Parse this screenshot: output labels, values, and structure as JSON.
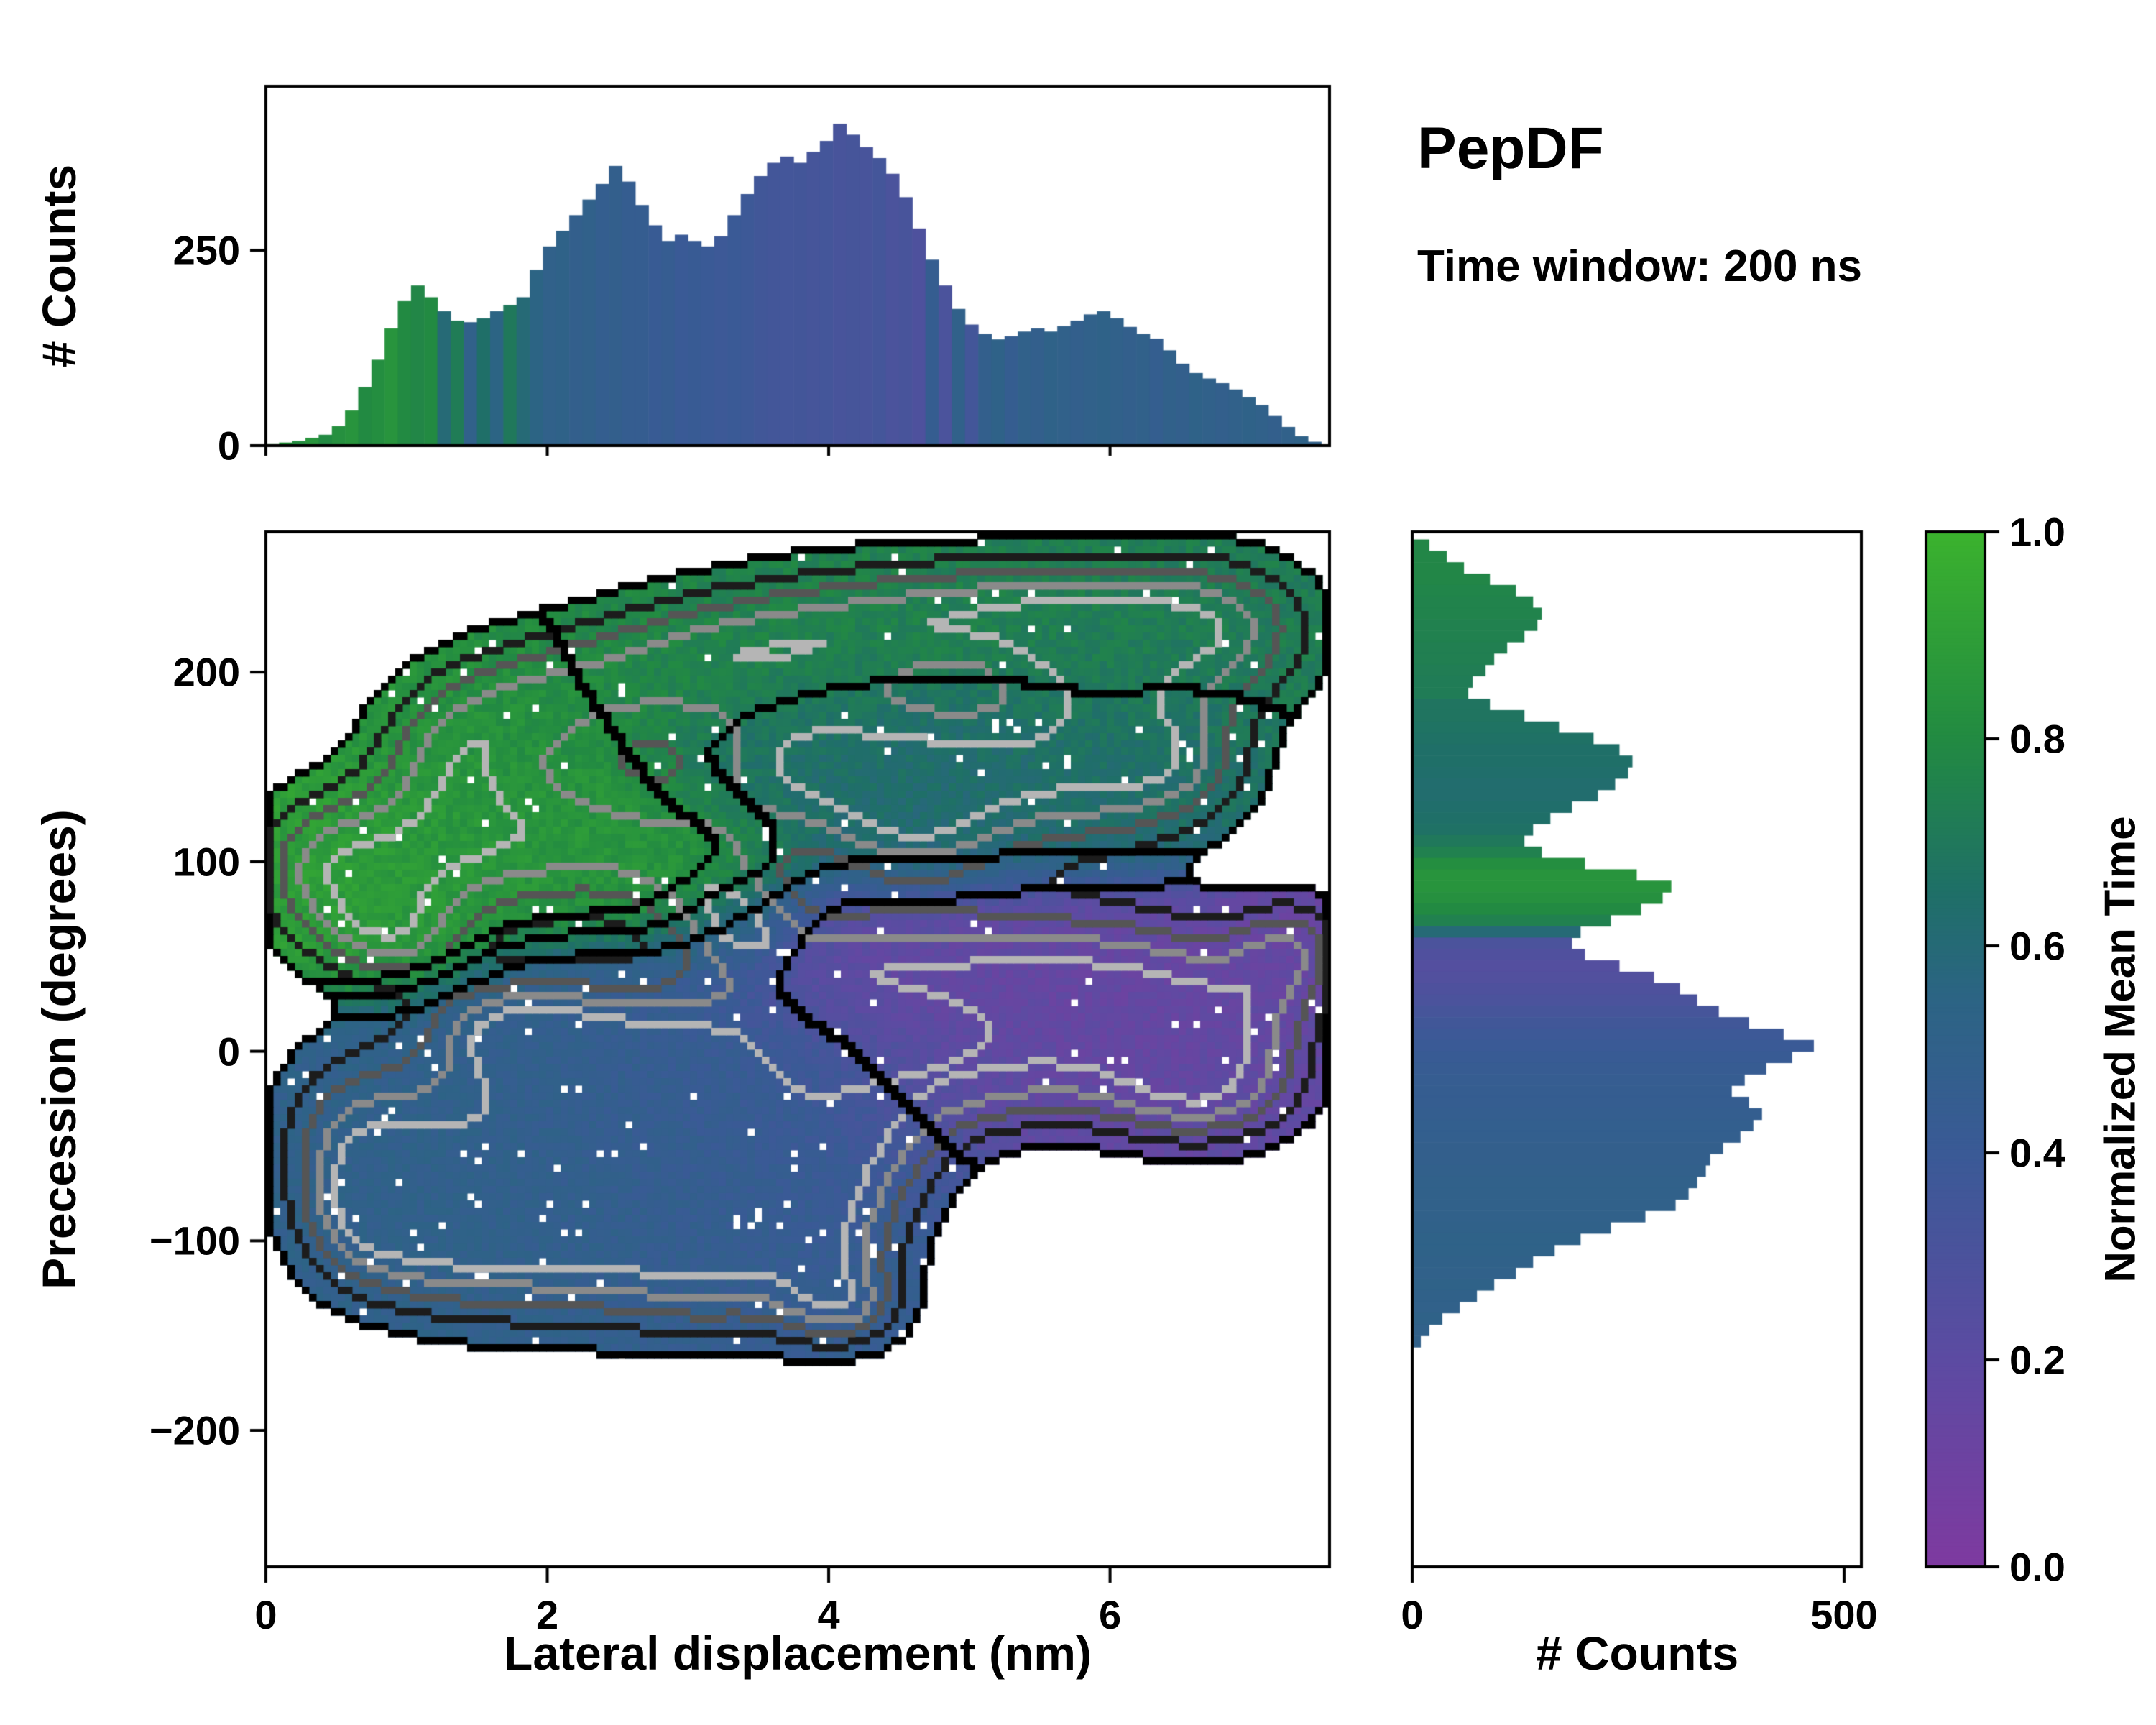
{
  "chart_data": {
    "type": "heatmap",
    "title": "PepDF",
    "subtitle": "Time window: 200 ns",
    "colormap": {
      "label": "Normalized Mean Time",
      "ticks": [
        "0.0",
        "0.2",
        "0.4",
        "0.6",
        "0.8",
        "1.0"
      ],
      "tick_values": [
        0,
        0.2,
        0.4,
        0.6,
        0.8,
        1
      ],
      "stops": [
        [
          0,
          "#7e3aa0"
        ],
        [
          0.2,
          "#5c4ba2"
        ],
        [
          0.4,
          "#3a5a96"
        ],
        [
          0.55,
          "#2c6484"
        ],
        [
          0.65,
          "#1f6f68"
        ],
        [
          0.8,
          "#228a42"
        ],
        [
          1,
          "#3bb22e"
        ]
      ]
    },
    "main_plot": {
      "xlabel": "Lateral displacement (nm)",
      "ylabel": "Precession (degrees)",
      "xlim": [
        0,
        7.56
      ],
      "ylim": [
        -272,
        274
      ],
      "xticks": {
        "labels": [
          "0",
          "2",
          "4",
          "6"
        ],
        "values": [
          0,
          2,
          4,
          6
        ]
      },
      "yticks": {
        "labels": [
          "−200",
          "−100",
          "0",
          "100",
          "200"
        ],
        "values": [
          -200,
          -100,
          0,
          100,
          200
        ]
      },
      "fill_threshold": 0.3,
      "contour_levels": [
        0.3,
        0.62,
        0.95,
        1.3,
        1.65
      ],
      "contour_colors": [
        "#000000",
        "#1c1c1c",
        "#555555",
        "#8a8a8a",
        "#b5b5b5"
      ],
      "value_contours": [
        0.3,
        0.56,
        0.7,
        0.8
      ],
      "blobs": [
        [
          0.35,
          95,
          0.35,
          28,
          0.9
        ],
        [
          0.9,
          100,
          0.45,
          30,
          0.88
        ],
        [
          1.6,
          110,
          0.5,
          30,
          0.86
        ],
        [
          2.4,
          115,
          0.5,
          30,
          0.85
        ],
        [
          3.1,
          95,
          0.4,
          22,
          0.86
        ],
        [
          1.3,
          160,
          0.4,
          28,
          0.84
        ],
        [
          1.9,
          185,
          0.45,
          25,
          0.82
        ],
        [
          0.9,
          60,
          0.35,
          18,
          0.88
        ],
        [
          2.7,
          200,
          0.5,
          25,
          0.78
        ],
        [
          3.5,
          215,
          0.55,
          25,
          0.76
        ],
        [
          4.4,
          225,
          0.6,
          25,
          0.75
        ],
        [
          5.3,
          232,
          0.6,
          22,
          0.74
        ],
        [
          6.2,
          232,
          0.55,
          24,
          0.73
        ],
        [
          6.9,
          220,
          0.45,
          28,
          0.72
        ],
        [
          5.9,
          195,
          0.5,
          25,
          0.72
        ],
        [
          3.6,
          150,
          0.5,
          28,
          0.66
        ],
        [
          4.3,
          155,
          0.55,
          28,
          0.64
        ],
        [
          5.1,
          150,
          0.55,
          28,
          0.63
        ],
        [
          5.9,
          140,
          0.5,
          28,
          0.64
        ],
        [
          4.6,
          115,
          0.5,
          22,
          0.62
        ],
        [
          6.5,
          155,
          0.4,
          25,
          0.66
        ],
        [
          4.0,
          45,
          0.5,
          25,
          0.2
        ],
        [
          4.8,
          40,
          0.55,
          28,
          0.16
        ],
        [
          5.6,
          45,
          0.55,
          25,
          0.15
        ],
        [
          6.4,
          35,
          0.5,
          28,
          0.15
        ],
        [
          7.0,
          10,
          0.4,
          30,
          0.17
        ],
        [
          5.9,
          -5,
          0.55,
          25,
          0.15
        ],
        [
          6.6,
          -25,
          0.45,
          20,
          0.18
        ],
        [
          5.0,
          -15,
          0.5,
          22,
          0.2
        ],
        [
          7.3,
          55,
          0.3,
          20,
          0.15
        ],
        [
          0.6,
          -45,
          0.4,
          35,
          0.5
        ],
        [
          1.3,
          -55,
          0.5,
          40,
          0.5
        ],
        [
          2.1,
          -45,
          0.55,
          40,
          0.48
        ],
        [
          2.9,
          -55,
          0.55,
          40,
          0.45
        ],
        [
          3.7,
          -55,
          0.5,
          38,
          0.42
        ],
        [
          2.3,
          5,
          0.55,
          28,
          0.46
        ],
        [
          3.2,
          0,
          0.5,
          28,
          0.42
        ],
        [
          1.4,
          -105,
          0.45,
          28,
          0.5
        ],
        [
          2.3,
          -110,
          0.5,
          28,
          0.48
        ],
        [
          3.2,
          -115,
          0.45,
          28,
          0.46
        ],
        [
          4.0,
          -100,
          0.4,
          30,
          0.44
        ],
        [
          4.1,
          -135,
          0.3,
          16,
          0.45
        ],
        [
          0.7,
          -90,
          0.35,
          28,
          0.5
        ],
        [
          4.35,
          -40,
          0.4,
          30,
          0.35
        ],
        [
          1.7,
          12,
          0.4,
          18,
          0.5
        ],
        [
          3.35,
          65,
          0.3,
          18,
          0.55
        ]
      ]
    },
    "top_hist": {
      "ylabel": "# Counts",
      "ylim": [
        0,
        460
      ],
      "yticks": {
        "labels": [
          "0",
          "250"
        ],
        "values": [
          0,
          250
        ]
      },
      "x_start": 0,
      "x_end": 7.5,
      "counts": [
        2,
        4,
        6,
        10,
        14,
        25,
        45,
        75,
        110,
        150,
        185,
        205,
        190,
        172,
        160,
        158,
        163,
        172,
        180,
        190,
        225,
        255,
        275,
        295,
        315,
        335,
        358,
        338,
        308,
        282,
        262,
        270,
        262,
        255,
        268,
        295,
        322,
        345,
        362,
        370,
        362,
        376,
        390,
        412,
        398,
        382,
        368,
        348,
        318,
        278,
        238,
        205,
        175,
        155,
        143,
        136,
        140,
        146,
        150,
        146,
        153,
        160,
        168,
        172,
        163,
        152,
        143,
        137,
        122,
        105,
        93,
        86,
        80,
        72,
        62,
        52,
        38,
        24,
        12,
        5
      ],
      "color_values": [
        0.85,
        0.85,
        0.82,
        0.85,
        0.8,
        0.83,
        0.85,
        0.8,
        0.82,
        0.85,
        0.8,
        0.78,
        0.8,
        0.6,
        0.72,
        0.5,
        0.65,
        0.55,
        0.7,
        0.6,
        0.55,
        0.5,
        0.52,
        0.48,
        0.5,
        0.46,
        0.48,
        0.45,
        0.45,
        0.42,
        0.44,
        0.4,
        0.42,
        0.4,
        0.38,
        0.4,
        0.38,
        0.36,
        0.35,
        0.34,
        0.35,
        0.33,
        0.34,
        0.32,
        0.33,
        0.32,
        0.34,
        0.3,
        0.32,
        0.28,
        0.45,
        0.3,
        0.5,
        0.35,
        0.48,
        0.52,
        0.45,
        0.5,
        0.48,
        0.52,
        0.5,
        0.48,
        0.5,
        0.52,
        0.5,
        0.48,
        0.5,
        0.46,
        0.5,
        0.48,
        0.52,
        0.5,
        0.48,
        0.5,
        0.52,
        0.5,
        0.48,
        0.5,
        0.52,
        0.5
      ]
    },
    "right_hist": {
      "xlabel": "# Counts",
      "xlim": [
        0,
        520
      ],
      "xticks": {
        "labels": [
          "0",
          "500"
        ],
        "values": [
          0,
          500
        ]
      },
      "y_start": 270,
      "y_end": -270,
      "counts": [
        20,
        40,
        60,
        90,
        120,
        140,
        150,
        145,
        130,
        110,
        95,
        85,
        70,
        65,
        90,
        130,
        170,
        210,
        240,
        255,
        250,
        235,
        215,
        185,
        160,
        140,
        130,
        150,
        200,
        260,
        300,
        290,
        265,
        230,
        195,
        185,
        200,
        240,
        280,
        310,
        330,
        355,
        390,
        430,
        465,
        440,
        410,
        385,
        370,
        390,
        405,
        395,
        380,
        360,
        345,
        340,
        330,
        320,
        305,
        270,
        230,
        195,
        165,
        140,
        120,
        95,
        75,
        55,
        35,
        20,
        10,
        0,
        0,
        0,
        0,
        0,
        0,
        0,
        0,
        0,
        0,
        0,
        0,
        0,
        0,
        0,
        0,
        0,
        0,
        0
      ],
      "color_values": [
        0.78,
        0.78,
        0.78,
        0.78,
        0.77,
        0.76,
        0.76,
        0.75,
        0.75,
        0.74,
        0.74,
        0.73,
        0.72,
        0.72,
        0.68,
        0.68,
        0.67,
        0.66,
        0.65,
        0.65,
        0.64,
        0.63,
        0.63,
        0.64,
        0.65,
        0.66,
        0.7,
        0.75,
        0.82,
        0.85,
        0.85,
        0.83,
        0.8,
        0.75,
        0.6,
        0.3,
        0.27,
        0.25,
        0.26,
        0.28,
        0.3,
        0.33,
        0.36,
        0.38,
        0.4,
        0.42,
        0.43,
        0.44,
        0.45,
        0.45,
        0.46,
        0.47,
        0.47,
        0.48,
        0.48,
        0.49,
        0.5,
        0.5,
        0.5,
        0.5,
        0.51,
        0.52,
        0.52,
        0.51,
        0.5,
        0.52,
        0.51,
        0.5,
        0.52,
        0.5,
        0.5,
        0.5,
        0.5,
        0.5,
        0.5,
        0.5,
        0.5,
        0.5,
        0.5,
        0.5,
        0.5,
        0.5,
        0.5,
        0.5,
        0.5,
        0.5,
        0.5,
        0.5,
        0.5,
        0.5
      ]
    }
  }
}
